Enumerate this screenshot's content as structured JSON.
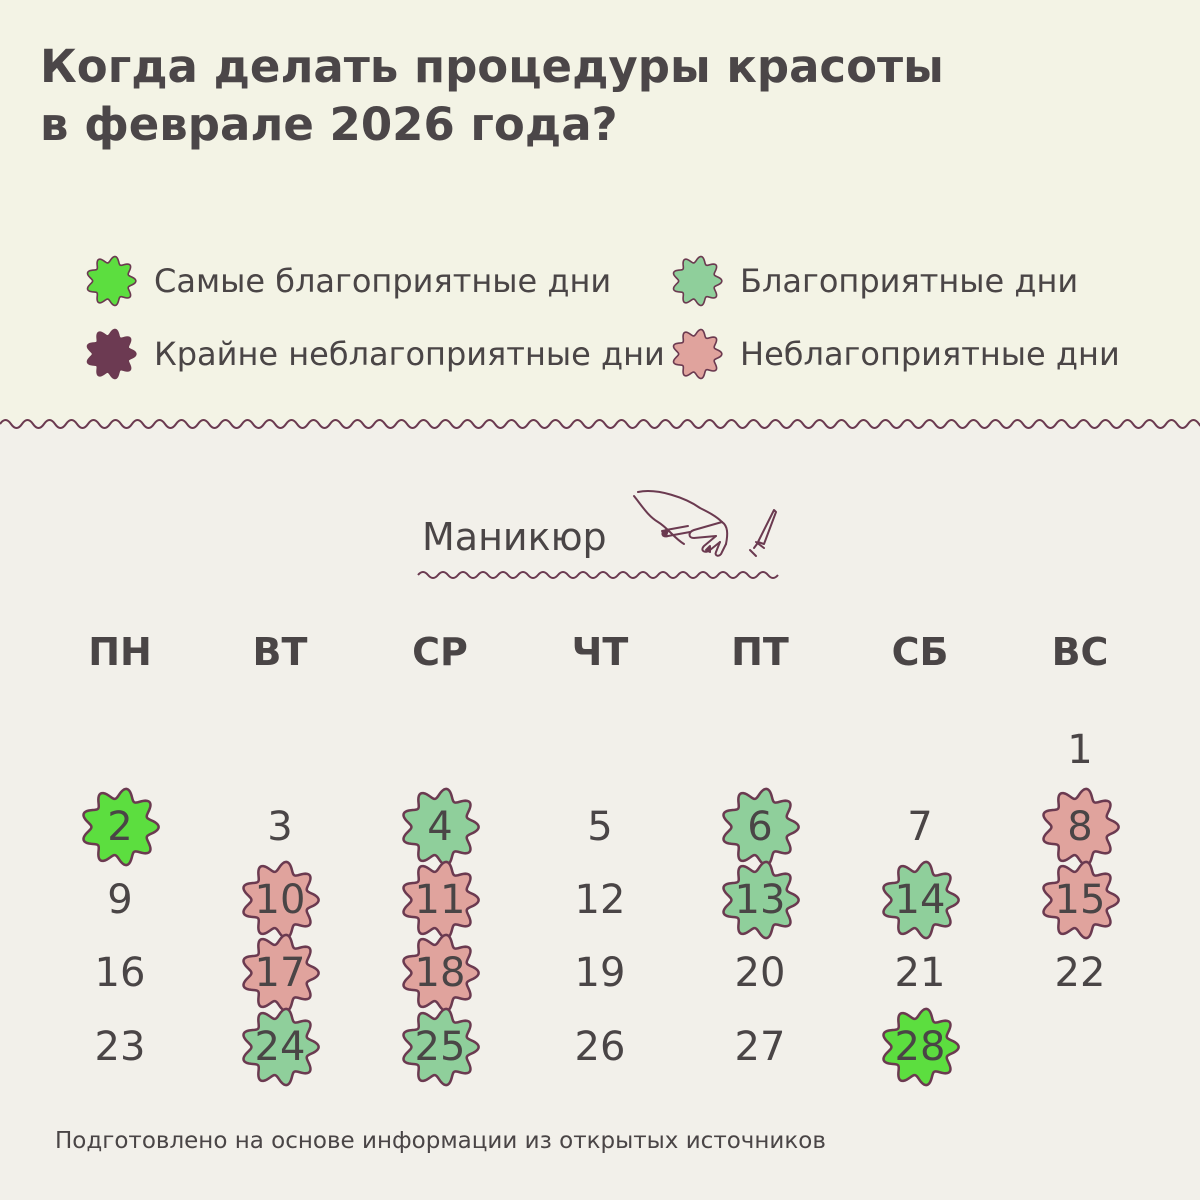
{
  "title": {
    "line1": "Когда делать процедуры красоты",
    "line2": "в феврале 2026 года?"
  },
  "legend": [
    {
      "label": "Самые благоприятные дни",
      "status": "best",
      "color": "#5cde3f",
      "icon": "flower-badge-icon"
    },
    {
      "label": "Благоприятные дни",
      "status": "good",
      "color": "#8fcf9b",
      "icon": "flower-badge-icon"
    },
    {
      "label": "Крайне неблагоприятные дни",
      "status": "worst",
      "color": "#6c3a52",
      "icon": "flower-badge-icon"
    },
    {
      "label": "Неблагоприятные дни",
      "status": "bad",
      "color": "#e0a39d",
      "icon": "flower-badge-icon"
    }
  ],
  "section": {
    "title": "Маникюр",
    "icon": "manicure-hand-icon"
  },
  "weekdays": [
    "ПН",
    "ВТ",
    "СР",
    "ЧТ",
    "ПТ",
    "СБ",
    "ВС"
  ],
  "calendar": {
    "first_weekday_index": 6,
    "days": [
      {
        "day": "1",
        "status": "none"
      },
      {
        "day": "2",
        "status": "best"
      },
      {
        "day": "3",
        "status": "none"
      },
      {
        "day": "4",
        "status": "good"
      },
      {
        "day": "5",
        "status": "none"
      },
      {
        "day": "6",
        "status": "good"
      },
      {
        "day": "7",
        "status": "none"
      },
      {
        "day": "8",
        "status": "bad"
      },
      {
        "day": "9",
        "status": "none"
      },
      {
        "day": "10",
        "status": "bad"
      },
      {
        "day": "11",
        "status": "bad"
      },
      {
        "day": "12",
        "status": "none"
      },
      {
        "day": "13",
        "status": "good"
      },
      {
        "day": "14",
        "status": "good"
      },
      {
        "day": "15",
        "status": "bad"
      },
      {
        "day": "16",
        "status": "none"
      },
      {
        "day": "17",
        "status": "bad"
      },
      {
        "day": "18",
        "status": "bad"
      },
      {
        "day": "19",
        "status": "none"
      },
      {
        "day": "20",
        "status": "none"
      },
      {
        "day": "21",
        "status": "none"
      },
      {
        "day": "22",
        "status": "none"
      },
      {
        "day": "23",
        "status": "none"
      },
      {
        "day": "24",
        "status": "good"
      },
      {
        "day": "25",
        "status": "good"
      },
      {
        "day": "26",
        "status": "none"
      },
      {
        "day": "27",
        "status": "none"
      },
      {
        "day": "28",
        "status": "best"
      }
    ]
  },
  "footer": "Подготовлено на основе информации из открытых источников",
  "colors": {
    "best": "#5cde3f",
    "good": "#8fcf9b",
    "worst": "#6c3a52",
    "bad": "#e0a39d",
    "outline": "#6b3a50",
    "text": "#4a4546"
  }
}
